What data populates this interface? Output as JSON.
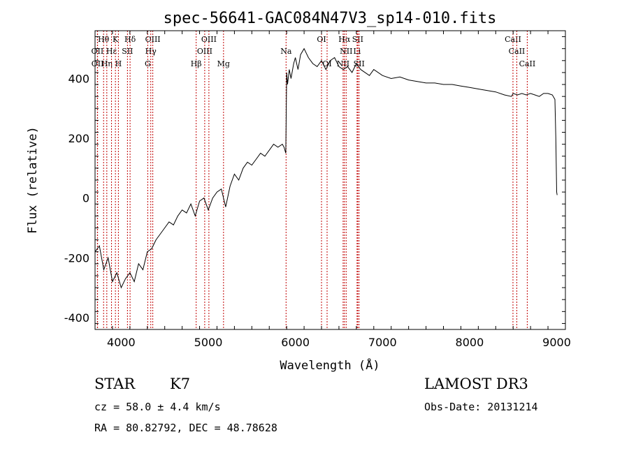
{
  "chart_data": {
    "type": "line",
    "title": "spec-56641-GAC084N47V3_sp14-010.fits",
    "xlabel": "Wavelength (Å)",
    "ylabel": "Flux (relative)",
    "xlim": [
      3700,
      9100
    ],
    "ylim": [
      -440,
      560
    ],
    "xticks": [
      4000,
      5000,
      6000,
      7000,
      8000,
      9000
    ],
    "yticks": [
      -400,
      -200,
      0,
      200,
      400
    ],
    "series": [
      {
        "name": "flux",
        "x": [
          3700,
          3750,
          3800,
          3850,
          3900,
          3950,
          4000,
          4050,
          4100,
          4150,
          4200,
          4250,
          4300,
          4350,
          4400,
          4450,
          4500,
          4550,
          4600,
          4650,
          4700,
          4750,
          4800,
          4850,
          4900,
          4950,
          5000,
          5050,
          5100,
          5150,
          5200,
          5250,
          5300,
          5350,
          5400,
          5450,
          5500,
          5550,
          5600,
          5650,
          5700,
          5750,
          5800,
          5850,
          5870,
          5890,
          5900,
          5910,
          5930,
          5950,
          5980,
          6000,
          6030,
          6060,
          6100,
          6150,
          6200,
          6250,
          6300,
          6350,
          6400,
          6450,
          6500,
          6550,
          6600,
          6650,
          6700,
          6750,
          6800,
          6850,
          6900,
          7000,
          7100,
          7200,
          7300,
          7400,
          7500,
          7600,
          7700,
          7800,
          7900,
          8000,
          8100,
          8200,
          8300,
          8400,
          8480,
          8500,
          8550,
          8600,
          8650,
          8700,
          8750,
          8800,
          8850,
          8900,
          8950,
          8980,
          8990,
          9000,
          9005
        ],
        "y": [
          -180,
          -160,
          -240,
          -200,
          -280,
          -250,
          -300,
          -270,
          -250,
          -280,
          -220,
          -240,
          -180,
          -170,
          -140,
          -120,
          -100,
          -80,
          -90,
          -60,
          -40,
          -50,
          -20,
          -60,
          -10,
          0,
          -40,
          0,
          20,
          30,
          -30,
          40,
          80,
          60,
          100,
          120,
          110,
          130,
          150,
          140,
          160,
          180,
          170,
          180,
          170,
          150,
          420,
          380,
          430,
          400,
          450,
          470,
          430,
          480,
          500,
          470,
          450,
          440,
          460,
          430,
          460,
          470,
          440,
          430,
          440,
          420,
          450,
          430,
          420,
          410,
          430,
          410,
          400,
          405,
          395,
          390,
          385,
          385,
          380,
          380,
          375,
          370,
          365,
          360,
          355,
          345,
          340,
          350,
          345,
          350,
          345,
          350,
          345,
          340,
          350,
          350,
          345,
          330,
          200,
          20,
          10
        ]
      }
    ],
    "lines": [
      {
        "name": "Hθ",
        "wave": 3798,
        "row": 0
      },
      {
        "name": "OII",
        "wave": 3727,
        "row": 1
      },
      {
        "name": "OII",
        "wave": 3729,
        "row": 2
      },
      {
        "name": "Hη",
        "wave": 3835,
        "row": 2
      },
      {
        "name": "Hε",
        "wave": 3889,
        "row": 1
      },
      {
        "name": "K",
        "wave": 3934,
        "row": 0
      },
      {
        "name": "H",
        "wave": 3968,
        "row": 2
      },
      {
        "name": "SII",
        "wave": 4072,
        "row": 1
      },
      {
        "name": "Hδ",
        "wave": 4102,
        "row": 0
      },
      {
        "name": "OIII",
        "wave": 4363,
        "row": 0
      },
      {
        "name": "Hγ",
        "wave": 4340,
        "row": 1
      },
      {
        "name": "G",
        "wave": 4305,
        "row": 2
      },
      {
        "name": "Hβ",
        "wave": 4861,
        "row": 2
      },
      {
        "name": "OIII",
        "wave": 4959,
        "row": 1
      },
      {
        "name": "OIII",
        "wave": 5007,
        "row": 0
      },
      {
        "name": "Mg",
        "wave": 5175,
        "row": 2
      },
      {
        "name": "Na",
        "wave": 5893,
        "row": 1
      },
      {
        "name": "OI",
        "wave": 6300,
        "row": 0
      },
      {
        "name": "OI",
        "wave": 6364,
        "row": 2
      },
      {
        "name": "NII",
        "wave": 6548,
        "row": 2
      },
      {
        "name": "Hα",
        "wave": 6563,
        "row": 0
      },
      {
        "name": "NII",
        "wave": 6583,
        "row": 1
      },
      {
        "name": "Li",
        "wave": 6708,
        "row": 1
      },
      {
        "name": "SII",
        "wave": 6716,
        "row": 0
      },
      {
        "name": "SII",
        "wave": 6731,
        "row": 2
      },
      {
        "name": "CaII",
        "wave": 8498,
        "row": 0
      },
      {
        "name": "CaII",
        "wave": 8542,
        "row": 1
      },
      {
        "name": "CaII",
        "wave": 8662,
        "row": 2
      }
    ]
  },
  "info": {
    "obj_class": "STAR",
    "subclass": "K7",
    "survey": "LAMOST DR3",
    "cz": "cz = 58.0 ± 4.4 km/s",
    "obs_date": "Obs-Date: 20131214",
    "coords": "RA =  80.82792, DEC =  48.78628"
  },
  "colors": {
    "line_marker": "#c00000",
    "spectrum": "#000000"
  }
}
